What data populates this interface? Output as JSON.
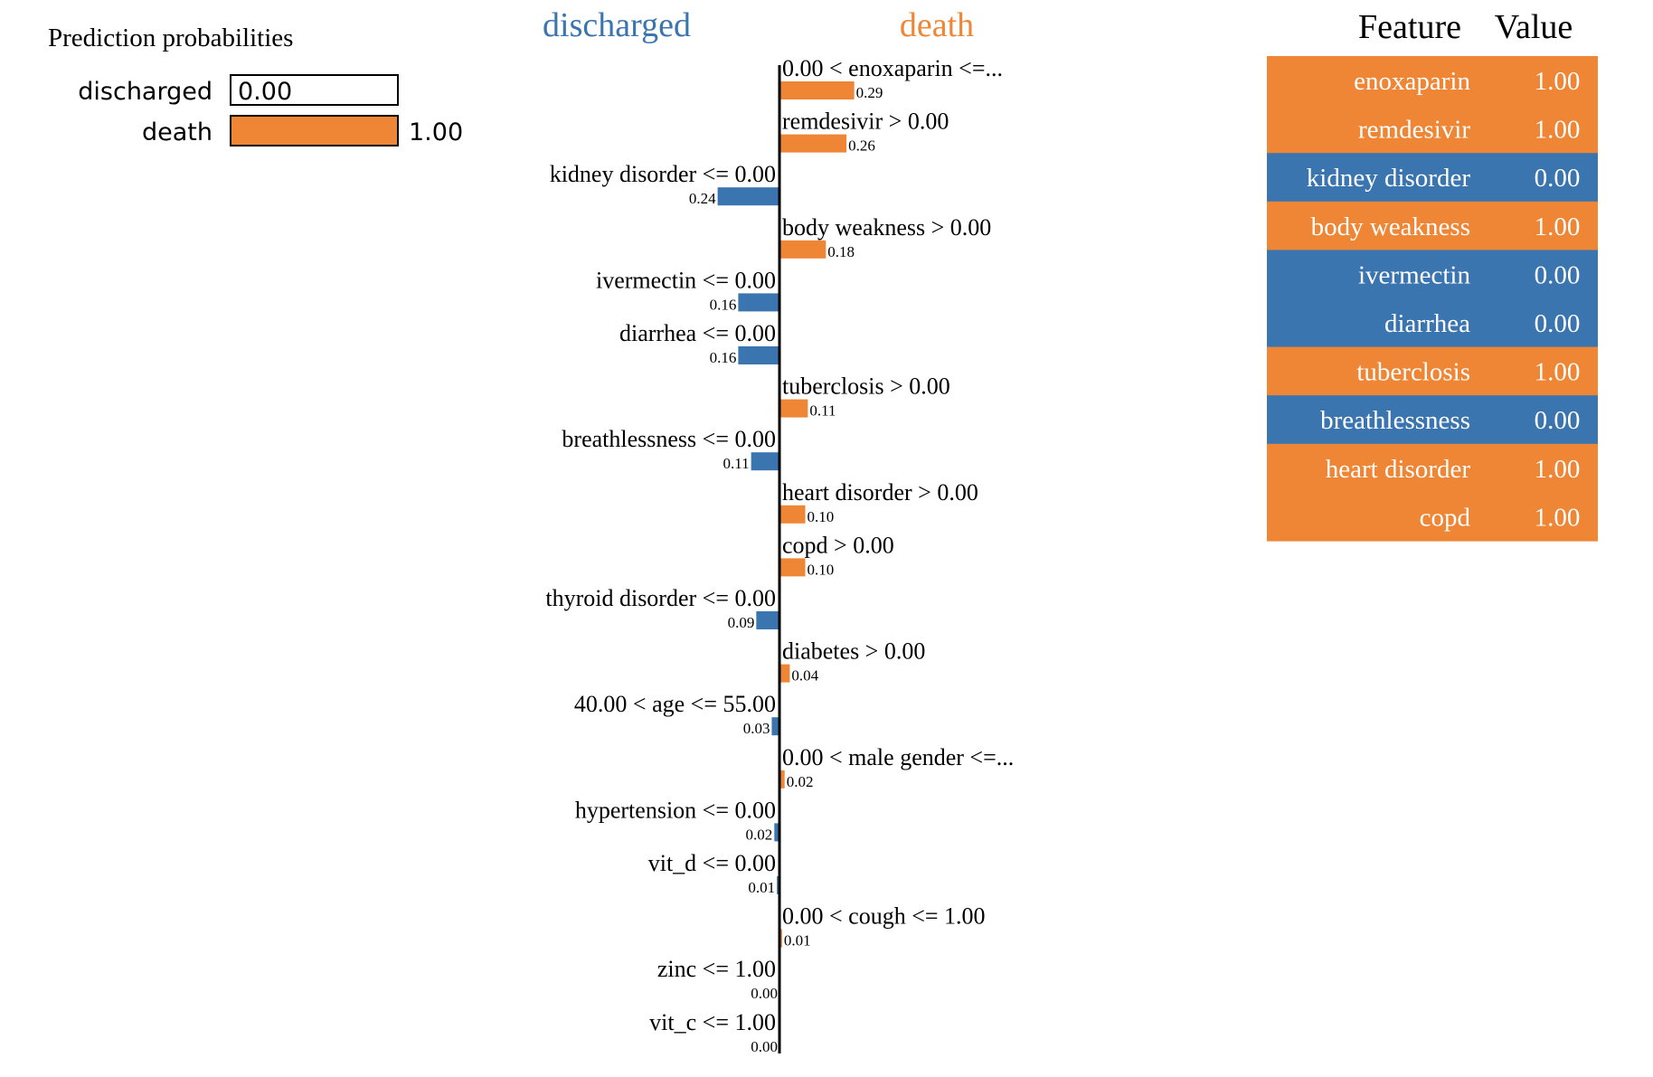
{
  "chart_data": [
    {
      "type": "bar",
      "title": "Prediction probabilities",
      "orientation": "horizontal",
      "categories": [
        "discharged",
        "death"
      ],
      "values": [
        0.0,
        1.0
      ],
      "value_labels": [
        "0.00",
        "1.00"
      ],
      "colors": [
        "#3a75b0",
        "#ee8636"
      ],
      "xlim": [
        0,
        1
      ]
    },
    {
      "type": "bar",
      "orientation": "horizontal",
      "class_left": "discharged",
      "class_right": "death",
      "colors": {
        "discharged": "#3a75b0",
        "death": "#ee8636"
      },
      "items": [
        {
          "label": "0.00 < enoxaparin <=...",
          "value": 0.29,
          "value_label": "0.29",
          "class": "death"
        },
        {
          "label": "remdesivir > 0.00",
          "value": 0.26,
          "value_label": "0.26",
          "class": "death"
        },
        {
          "label": "kidney disorder <= 0.00",
          "value": 0.24,
          "value_label": "0.24",
          "class": "discharged"
        },
        {
          "label": "body weakness > 0.00",
          "value": 0.18,
          "value_label": "0.18",
          "class": "death"
        },
        {
          "label": "ivermectin <= 0.00",
          "value": 0.16,
          "value_label": "0.16",
          "class": "discharged"
        },
        {
          "label": "diarrhea <= 0.00",
          "value": 0.16,
          "value_label": "0.16",
          "class": "discharged"
        },
        {
          "label": "tuberclosis > 0.00",
          "value": 0.11,
          "value_label": "0.11",
          "class": "death"
        },
        {
          "label": "breathlessness <= 0.00",
          "value": 0.11,
          "value_label": "0.11",
          "class": "discharged"
        },
        {
          "label": "heart disorder > 0.00",
          "value": 0.1,
          "value_label": "0.10",
          "class": "death"
        },
        {
          "label": "copd > 0.00",
          "value": 0.1,
          "value_label": "0.10",
          "class": "death"
        },
        {
          "label": "thyroid disorder <= 0.00",
          "value": 0.09,
          "value_label": "0.09",
          "class": "discharged"
        },
        {
          "label": "diabetes > 0.00",
          "value": 0.04,
          "value_label": "0.04",
          "class": "death"
        },
        {
          "label": "40.00 < age <= 55.00",
          "value": 0.03,
          "value_label": "0.03",
          "class": "discharged"
        },
        {
          "label": "0.00 < male gender <=...",
          "value": 0.02,
          "value_label": "0.02",
          "class": "death"
        },
        {
          "label": "hypertension <= 0.00",
          "value": 0.02,
          "value_label": "0.02",
          "class": "discharged"
        },
        {
          "label": "vit_d <= 0.00",
          "value": 0.01,
          "value_label": "0.01",
          "class": "discharged"
        },
        {
          "label": "0.00 < cough <= 1.00",
          "value": 0.01,
          "value_label": "0.01",
          "class": "death"
        },
        {
          "label": "zinc <= 1.00",
          "value": 0.0,
          "value_label": "0.00",
          "class": "discharged"
        },
        {
          "label": "vit_c <= 1.00",
          "value": 0.0,
          "value_label": "0.00",
          "class": "discharged"
        }
      ]
    },
    {
      "type": "table",
      "columns": [
        "Feature",
        "Value"
      ],
      "rows": [
        {
          "feature": "enoxaparin",
          "value": "1.00",
          "class": "death"
        },
        {
          "feature": "remdesivir",
          "value": "1.00",
          "class": "death"
        },
        {
          "feature": "kidney disorder",
          "value": "0.00",
          "class": "discharged"
        },
        {
          "feature": "body weakness",
          "value": "1.00",
          "class": "death"
        },
        {
          "feature": "ivermectin",
          "value": "0.00",
          "class": "discharged"
        },
        {
          "feature": "diarrhea",
          "value": "0.00",
          "class": "discharged"
        },
        {
          "feature": "tuberclosis",
          "value": "1.00",
          "class": "death"
        },
        {
          "feature": "breathlessness",
          "value": "0.00",
          "class": "discharged"
        },
        {
          "feature": "heart disorder",
          "value": "1.00",
          "class": "death"
        },
        {
          "feature": "copd",
          "value": "1.00",
          "class": "death"
        }
      ]
    }
  ]
}
